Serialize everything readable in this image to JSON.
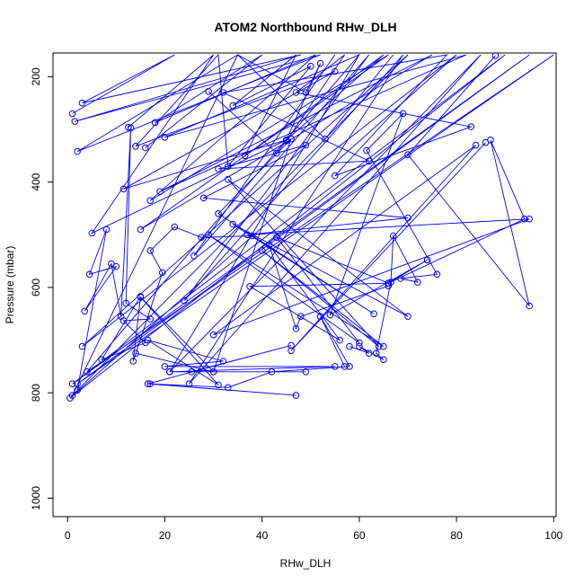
{
  "chart_data": {
    "type": "line",
    "title": "ATOM2 Northbound RHw_DLH",
    "xlabel": "RHw_DLH",
    "ylabel": "Pressure (mbar)",
    "xlim": [
      -3,
      100.5
    ],
    "ylim": [
      1035,
      155
    ],
    "y_inverted": true,
    "x_ticks": [
      0,
      20,
      40,
      60,
      80,
      100
    ],
    "y_ticks": [
      200,
      400,
      600,
      800,
      1000
    ],
    "grid": false,
    "line_color": "#0000ff",
    "marker": "open-circle",
    "series": [
      {
        "x": [
          1.0,
          22.0,
          3.0,
          48.0,
          1.5,
          52.0,
          2.0,
          35.0,
          1.0,
          70.0,
          3.0,
          80.0,
          0.5,
          90.0,
          1.0,
          95.0,
          2.0,
          100.0,
          4.0,
          60.0
        ],
        "y": [
          270,
          150,
          250,
          150,
          285,
          150,
          342,
          150,
          805,
          150,
          712,
          150,
          810,
          150,
          783,
          150,
          783,
          150,
          760,
          150
        ]
      },
      {
        "x": [
          12.5,
          30.0,
          5.0,
          45.0,
          11.5,
          55.0,
          14.0,
          31.0,
          33.0,
          50.0,
          34.0,
          47.0,
          36.5,
          65.0,
          45.0,
          52.0,
          49.0,
          35.0,
          53.0,
          67.0
        ],
        "y": [
          296,
          150,
          497,
          320,
          413,
          190,
          332,
          150,
          370,
          180,
          255,
          150,
          350,
          150,
          320,
          175,
          230,
          150,
          318,
          150
        ]
      },
      {
        "x": [
          16.0,
          40.0,
          18.0,
          51.0,
          17.0,
          66.0,
          15.0,
          75.0,
          19.0,
          82.0,
          20.0,
          60.0,
          21.0,
          85.0,
          25.0,
          69.0,
          24.0,
          62.0,
          26.0,
          55.0
        ],
        "y": [
          335,
          150,
          287,
          150,
          435,
          150,
          490,
          150,
          418,
          150,
          315,
          150,
          760,
          150,
          783,
          150,
          625,
          150,
          540,
          150
        ]
      },
      {
        "x": [
          29.0,
          43.0,
          45.0,
          57.0,
          47.0,
          83.0,
          55.0,
          78.0,
          32.0,
          62.0,
          31.0,
          49.0,
          28.0,
          70.0,
          37.0,
          95.0,
          30.0,
          84.0,
          46.0,
          86.0
        ],
        "y": [
          228,
          345,
          322,
          150,
          230,
          295,
          388,
          150,
          230,
          360,
          375,
          330,
          430,
          468,
          500,
          470,
          690,
          330,
          720,
          325
        ]
      },
      {
        "x": [
          2.0,
          8.0,
          4.5,
          10.0,
          3.5,
          9.0,
          11.0,
          13.0,
          12.0,
          17.0,
          11.5,
          16.0,
          7.0,
          15.0,
          13.5,
          19.5,
          17.0,
          22.0,
          27.5,
          38.0
        ],
        "y": [
          795,
          490,
          575,
          560,
          645,
          555,
          655,
          297,
          630,
          660,
          663,
          705,
          737,
          617,
          740,
          572,
          530,
          485,
          505,
          502
        ]
      },
      {
        "x": [
          14.0,
          30.0,
          15.0,
          31.0,
          16.5,
          32.0,
          20.0,
          55.0,
          21.0,
          49.0,
          25.5,
          46.0,
          16.5,
          47.0,
          17.0,
          33.0,
          42.0,
          58.0,
          52.0,
          57.0
        ],
        "y": [
          725,
          760,
          618,
          785,
          700,
          740,
          750,
          750,
          760,
          760,
          760,
          710,
          783,
          805,
          783,
          790,
          760,
          750,
          655,
          750
        ]
      },
      {
        "x": [
          30.0,
          46.0,
          31.0,
          63.0,
          34.0,
          70.0,
          33.0,
          64.0,
          40.0,
          65.0,
          29.0,
          60.0,
          43.0,
          66.0,
          37.5,
          56.0,
          41.5,
          47.0,
          48.0,
          66.0
        ],
        "y": [
          760,
          318,
          460,
          650,
          480,
          655,
          395,
          712,
          530,
          712,
          500,
          705,
          505,
          592,
          598,
          700,
          520,
          678,
          655,
          597
        ]
      },
      {
        "x": [
          58.0,
          62.0,
          60.0,
          65.0,
          63.5,
          66.5,
          67.0,
          72.0,
          68.5,
          76.0,
          61.5,
          69.0,
          54.0,
          74.0,
          66.0,
          94.0,
          87.0,
          95.0,
          70.0,
          88.0
        ],
        "y": [
          712,
          725,
          712,
          737,
          725,
          590,
          502,
          590,
          583,
          575,
          340,
          270,
          652,
          548,
          592,
          470,
          320,
          635,
          348,
          160
        ]
      }
    ]
  }
}
